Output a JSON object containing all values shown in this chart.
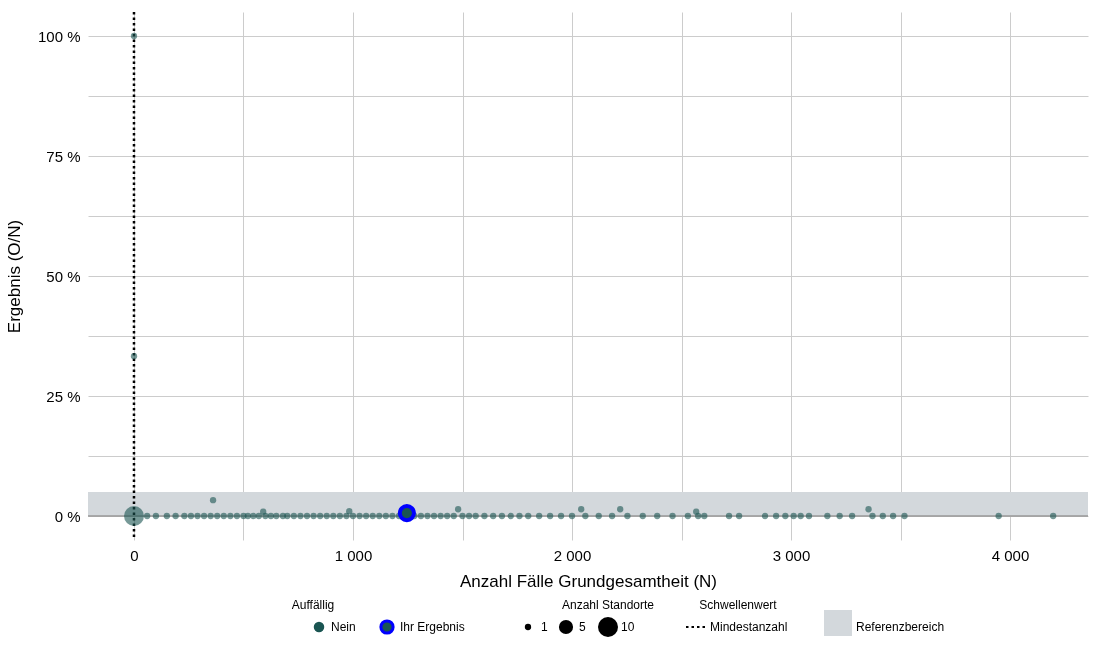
{
  "chart_data": {
    "type": "scatter",
    "xlabel": "Anzahl Fälle Grundgesamtheit (N)",
    "ylabel": "Ergebnis (O/N)",
    "legend_title": "Auffällig",
    "legend": "bottom",
    "grid": true,
    "marker": "circle",
    "annotations": [
      "Anzahl Standorte",
      "Schwellenwert"
    ],
    "xlim": [
      -210,
      4356
    ],
    "ylim": [
      -5,
      105
    ],
    "xticks": [
      0,
      {
        "value": 500,
        "label": null
      },
      {
        "value": 1000,
        "label": "1 000"
      },
      {
        "value": 1500,
        "label": null
      },
      {
        "value": 2000,
        "label": "2 000"
      },
      {
        "value": 2500,
        "label": null
      },
      {
        "value": 3000,
        "label": "3 000"
      },
      {
        "value": 3500,
        "label": null
      },
      {
        "value": 4000,
        "label": "4 000"
      }
    ],
    "yticks": [
      {
        "value": 0,
        "label": "0 %"
      },
      {
        "value": 12.5,
        "label": null
      },
      {
        "value": 25,
        "label": "25 %"
      },
      {
        "value": 37.5,
        "label": null
      },
      {
        "value": 50,
        "label": "50 %"
      },
      {
        "value": 62.5,
        "label": null
      },
      {
        "value": 75,
        "label": "75 %"
      },
      {
        "value": 87.5,
        "label": null
      },
      {
        "value": 100,
        "label": "100 %"
      }
    ],
    "size_legend": [
      1,
      5,
      10
    ],
    "ref_lines": [
      {
        "axis": "x",
        "value": 0,
        "label": "Mindestanzahl",
        "color": "#000000",
        "line_style": "dotted"
      }
    ],
    "bands": [
      {
        "axis": "y",
        "from": 0,
        "to": 5,
        "label": "Referenzbereich",
        "color": "#d3d8dc"
      }
    ],
    "series": [
      {
        "name": "Nein",
        "color": "#1a5552",
        "x": [
          0,
          0,
          0,
          361,
          590,
          983,
          1480,
          2042,
          2220,
          2567,
          3354,
          60,
          100,
          150,
          190,
          230,
          260,
          290,
          320,
          350,
          380,
          410,
          440,
          470,
          500,
          520,
          545,
          570,
          600,
          625,
          650,
          680,
          700,
          730,
          760,
          790,
          820,
          850,
          880,
          910,
          940,
          970,
          1000,
          1030,
          1060,
          1090,
          1120,
          1150,
          1180,
          1210,
          1280,
          1310,
          1340,
          1370,
          1400,
          1430,
          1460,
          1500,
          1530,
          1560,
          1600,
          1640,
          1680,
          1720,
          1760,
          1800,
          1850,
          1900,
          1950,
          2000,
          2061,
          2122,
          2183,
          2253,
          2323,
          2389,
          2459,
          2529,
          2576,
          2604,
          2717,
          2763,
          2881,
          2932,
          2974,
          3012,
          3044,
          3082,
          3166,
          3222,
          3279,
          3372,
          3419,
          3466,
          3518,
          3948,
          4197
        ],
        "values": [
          0,
          100,
          33.3,
          3.3,
          0.9,
          1.0,
          1.4,
          1.4,
          1.4,
          0.9,
          1.4,
          0,
          0,
          0,
          0,
          0,
          0,
          0,
          0,
          0,
          0,
          0,
          0,
          0,
          0,
          0,
          0,
          0,
          0,
          0,
          0,
          0,
          0,
          0,
          0,
          0,
          0,
          0,
          0,
          0,
          0,
          0,
          0,
          0,
          0,
          0,
          0,
          0,
          0,
          0,
          0,
          0,
          0,
          0,
          0,
          0,
          0,
          0,
          0,
          0,
          0,
          0,
          0,
          0,
          0,
          0,
          0,
          0,
          0,
          0,
          0,
          0,
          0,
          0,
          0,
          0,
          0,
          0,
          0,
          0,
          0,
          0,
          0,
          0,
          0,
          0,
          0,
          0,
          0,
          0,
          0,
          0,
          0,
          0,
          0,
          0,
          0
        ],
        "sizes": [
          10,
          1,
          1,
          1,
          1,
          1,
          1,
          1,
          1,
          1,
          1,
          1,
          1,
          1,
          1,
          1,
          1,
          1,
          1,
          1,
          1,
          1,
          1,
          1,
          1,
          1,
          1,
          1,
          1,
          1,
          1,
          1,
          1,
          1,
          1,
          1,
          1,
          1,
          1,
          1,
          1,
          1,
          1,
          1,
          1,
          1,
          1,
          1,
          1,
          1,
          1,
          1,
          1,
          1,
          1,
          1,
          1,
          1,
          1,
          1,
          1,
          1,
          1,
          1,
          1,
          1,
          1,
          1,
          1,
          1,
          1,
          1,
          1,
          1,
          1,
          1,
          1,
          1,
          1,
          1,
          1,
          1,
          1,
          1,
          1,
          1,
          1,
          1,
          1,
          1,
          1,
          1,
          1,
          1,
          1,
          1,
          1
        ]
      },
      {
        "name": "Ihr Ergebnis",
        "color": "#0000ff",
        "x": [
          1246
        ],
        "values": [
          0.6
        ],
        "sizes": [
          5
        ]
      }
    ]
  }
}
